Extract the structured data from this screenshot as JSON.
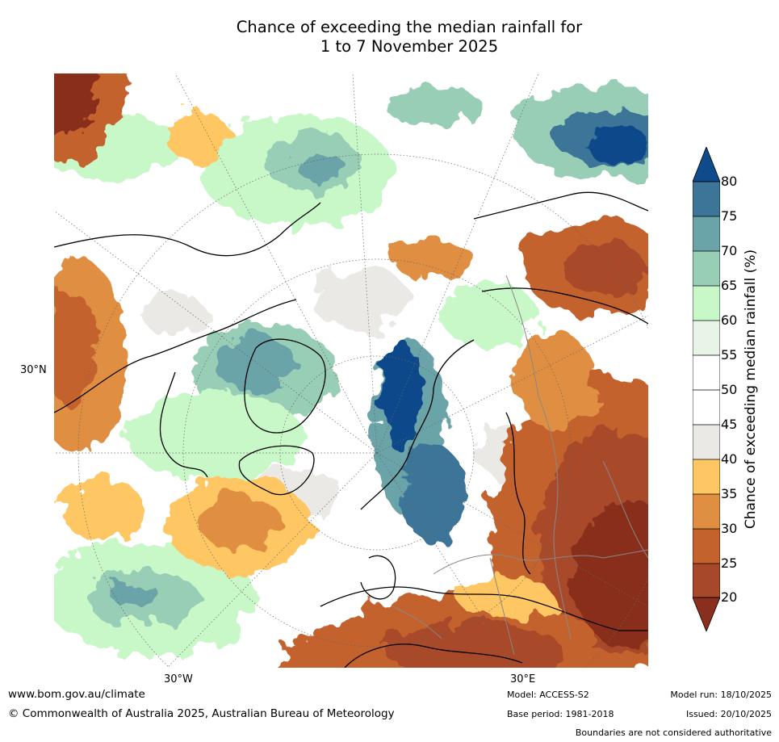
{
  "title": {
    "line1": "Chance of exceeding the median rainfall for",
    "line2": "1 to 7 November 2025"
  },
  "map": {
    "latitude_label": "30°N",
    "longitude_labels": [
      "30°W",
      "30°E"
    ]
  },
  "colorbar": {
    "label": "Chance of exceeding median rainfall (%)",
    "ticks": [
      "80",
      "75",
      "70",
      "65",
      "60",
      "55",
      "50",
      "45",
      "40",
      "35",
      "30",
      "25",
      "20"
    ],
    "colors": {
      "above_80": "#0f4a8a",
      "75_80": "#3d7598",
      "70_75": "#6aa3a8",
      "65_70": "#98cdb6",
      "60_65": "#c8f7c8",
      "55_60": "#e9f4e9",
      "50_55": "#ffffff",
      "45_50": "#ffffff",
      "40_45": "#ebe9e6",
      "35_40": "#ffc763",
      "30_35": "#e08f42",
      "25_30": "#c4622e",
      "20_25": "#a8482a",
      "below_20": "#8a2e1e"
    }
  },
  "footer": {
    "website": "www.bom.gov.au/climate",
    "copyright": "© Commonwealth of Australia 2025, Australian Bureau of Meteorology",
    "model": "Model: ACCESS-S2",
    "base_period": "Base period: 1981-2018",
    "model_run": "Model run: 18/10/2025",
    "issued": "Issued: 20/10/2025",
    "disclaimer": "Boundaries are not considered authoritative"
  }
}
